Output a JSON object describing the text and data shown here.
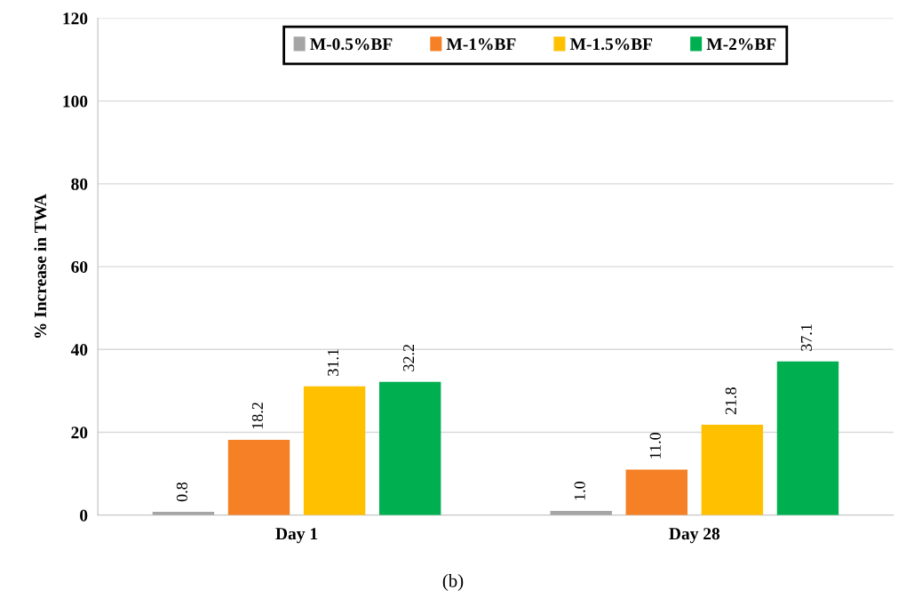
{
  "chart_data": {
    "type": "bar",
    "ylabel": "% Increase in TWA",
    "categories": [
      "Day 1",
      "Day 28"
    ],
    "series": [
      {
        "name": "M-0.5%BF",
        "color": "#a5a5a5",
        "values": [
          0.8,
          1.0
        ],
        "value_labels": [
          "0.8",
          "1.0"
        ]
      },
      {
        "name": "M-1%BF",
        "color": "#f58025",
        "values": [
          18.2,
          11.0
        ],
        "value_labels": [
          "18.2",
          "11.0"
        ]
      },
      {
        "name": "M-1.5%BF",
        "color": "#ffc000",
        "values": [
          31.1,
          21.8
        ],
        "value_labels": [
          "31.1",
          "21.8"
        ]
      },
      {
        "name": "M-2%BF",
        "color": "#00b050",
        "values": [
          32.2,
          37.1
        ],
        "value_labels": [
          "32.2",
          "37.1"
        ]
      }
    ],
    "ylim": [
      0,
      120
    ],
    "yticks": [
      0,
      20,
      40,
      60,
      80,
      100,
      120
    ],
    "grid": "y",
    "legend": "top",
    "annotations": [
      "(b)"
    ]
  }
}
